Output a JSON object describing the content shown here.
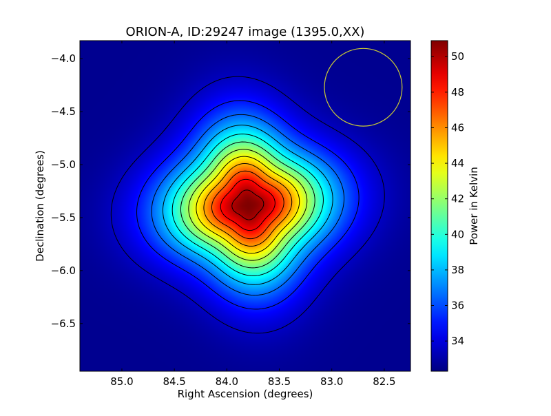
{
  "chart_data": {
    "type": "heatmap",
    "title": "ORION-A, ID:29247 image (1395.0,XX)",
    "xlabel": "Right Ascension (degrees)",
    "ylabel": "Declination (degrees)",
    "colorbar_label": "Power in Kelvin",
    "xlim": [
      85.4,
      82.25
    ],
    "ylim": [
      -6.95,
      -3.83
    ],
    "x_ticks": [
      85.0,
      84.5,
      84.0,
      83.5,
      83.0,
      82.5
    ],
    "x_tick_labels": [
      "85.0",
      "84.5",
      "84.0",
      "83.5",
      "83.0",
      "82.5"
    ],
    "y_ticks": [
      -4.0,
      -4.5,
      -5.0,
      -5.5,
      -6.0,
      -6.5
    ],
    "y_tick_labels": [
      "−4.0",
      "−4.5",
      "−5.0",
      "−5.5",
      "−6.0",
      "−6.5"
    ],
    "color_range": [
      32.3,
      50.9
    ],
    "colorbar_ticks": [
      34,
      36,
      38,
      40,
      42,
      44,
      46,
      48,
      50
    ],
    "colorbar_tick_labels": [
      "34",
      "36",
      "38",
      "40",
      "42",
      "44",
      "46",
      "48",
      "50"
    ],
    "colormap": "jet",
    "background_level": 32.6,
    "peak": {
      "ra": 83.8,
      "dec": -5.38,
      "value": 50.9
    },
    "contour_levels": [
      33.5,
      35.0,
      36.5,
      38.0,
      39.5,
      41.0,
      42.5,
      44.0,
      45.5,
      47.0,
      48.5,
      50.0
    ],
    "beam_circle": {
      "ra": 82.7,
      "dec": -4.27,
      "radius_deg": 0.37,
      "color": "#cccc33"
    },
    "contour_color": "#000000"
  }
}
